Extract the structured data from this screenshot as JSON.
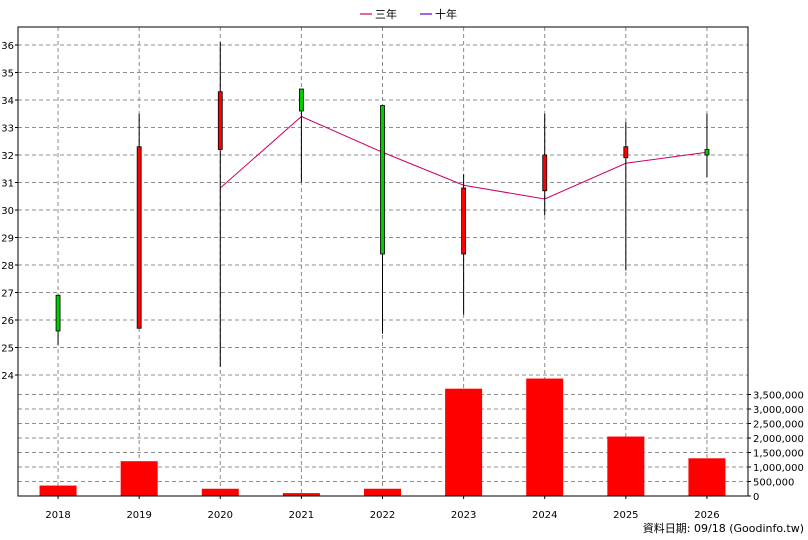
{
  "chart_data": {
    "type": "candlestick+bar",
    "legend": [
      {
        "label": "三年",
        "color": "#cc0066"
      },
      {
        "label": "十年",
        "color": "#6600cc"
      }
    ],
    "x": [
      "2018",
      "2019",
      "2020",
      "2021",
      "2022",
      "2023",
      "2024",
      "2025",
      "2026"
    ],
    "price_axis": {
      "ylim": [
        24,
        36.3
      ],
      "ticks": [
        24,
        25,
        26,
        27,
        28,
        29,
        30,
        31,
        32,
        33,
        34,
        35,
        36
      ]
    },
    "candles": [
      {
        "x": "2018",
        "open": 25.6,
        "close": 26.9,
        "high": 26.9,
        "low": 25.1
      },
      {
        "x": "2019",
        "open": 32.3,
        "close": 25.7,
        "high": 33.5,
        "low": 25.7
      },
      {
        "x": "2020",
        "open": 34.3,
        "close": 32.2,
        "high": 36.1,
        "low": 24.3
      },
      {
        "x": "2021",
        "open": 33.6,
        "close": 34.4,
        "high": 34.4,
        "low": 31.0
      },
      {
        "x": "2022",
        "open": 28.4,
        "close": 33.8,
        "high": 33.8,
        "low": 25.5
      },
      {
        "x": "2023",
        "open": 30.8,
        "close": 28.4,
        "high": 31.3,
        "low": 26.2
      },
      {
        "x": "2024",
        "open": 32.0,
        "close": 30.7,
        "high": 33.5,
        "low": 29.8
      },
      {
        "x": "2025",
        "open": 32.3,
        "close": 31.9,
        "high": 33.2,
        "low": 27.8
      },
      {
        "x": "2026",
        "open": 32.0,
        "close": 32.2,
        "high": 33.5,
        "low": 31.2
      }
    ],
    "up_color": "#00cc00",
    "down_color": "#ff0000",
    "line_series": [
      {
        "name": "三年",
        "color": "#cc0066",
        "x": [
          "2020",
          "2021",
          "2022",
          "2023",
          "2024",
          "2025",
          "2026"
        ],
        "values": [
          30.8,
          33.4,
          32.1,
          30.9,
          30.4,
          31.7,
          32.1
        ]
      }
    ],
    "volume_axis": {
      "ylim": [
        0,
        4000000
      ],
      "ticks": [
        0,
        500000,
        1000000,
        1500000,
        2000000,
        2500000,
        3000000,
        3500000
      ],
      "tick_labels": [
        "0",
        "500,000",
        "1,000,000",
        "1,500,000",
        "2,000,000",
        "2,500,000",
        "3,000,000",
        "3,500,000"
      ]
    },
    "volume": {
      "color": "#ff0000",
      "values": [
        360000,
        1200000,
        250000,
        100000,
        250000,
        3700000,
        4050000,
        2050000,
        1300000
      ]
    },
    "grid": true
  },
  "footer": "資料日期: 09/18  (Goodinfo.tw)"
}
